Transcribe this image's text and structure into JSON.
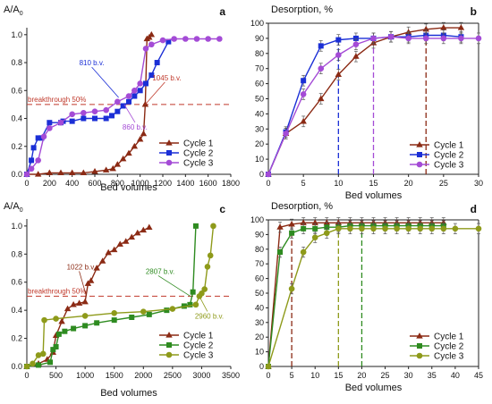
{
  "colors": {
    "cycle1": "#8B2A14",
    "cycle2_top": "#1B2FD6",
    "cycle3_top": "#A44BD6",
    "cycle2_bottom": "#2E8B20",
    "cycle3_bottom": "#8E9A1A",
    "breakthrough": "#C0392B",
    "axis": "#222222"
  },
  "chart_data": [
    {
      "id": "a",
      "panel_label": "a",
      "type": "line",
      "ylabel": "A/A0",
      "xlabel": "Bed volumes",
      "xlim": [
        0,
        1800
      ],
      "ylim": [
        0,
        1.05
      ],
      "xticks": [
        0,
        200,
        400,
        600,
        800,
        1000,
        1200,
        1400,
        1600,
        1800
      ],
      "yticks": [
        0.0,
        0.2,
        0.4,
        0.6,
        0.8,
        1.0
      ],
      "grid": false,
      "legend_position": "bottom-right",
      "hline": {
        "y": 0.5,
        "label": "breakthrough 50%"
      },
      "annotations": [
        {
          "text": "810 b.v.",
          "x": 810,
          "y": 0.55
        },
        {
          "text": "1045 b.v.",
          "x": 1045,
          "y": 0.5
        },
        {
          "text": "860 b.v.",
          "x": 860,
          "y": 0.5
        }
      ],
      "series": [
        {
          "name": "Cycle 1",
          "marker": "triangle",
          "x": [
            0,
            100,
            200,
            300,
            400,
            500,
            600,
            700,
            760,
            800,
            850,
            900,
            950,
            1000,
            1030,
            1045,
            1060,
            1080,
            1100
          ],
          "y": [
            0,
            0,
            0.01,
            0.01,
            0.01,
            0.01,
            0.02,
            0.03,
            0.04,
            0.07,
            0.11,
            0.15,
            0.2,
            0.25,
            0.29,
            0.5,
            0.97,
            0.98,
            1.0
          ]
        },
        {
          "name": "Cycle 2",
          "marker": "square",
          "x": [
            0,
            40,
            60,
            100,
            130,
            200,
            300,
            320,
            400,
            500,
            600,
            700,
            750,
            800,
            850,
            900,
            950,
            1000,
            1050,
            1100,
            1150,
            1250
          ],
          "y": [
            0,
            0.1,
            0.19,
            0.26,
            0.26,
            0.37,
            0.37,
            0.38,
            0.38,
            0.4,
            0.4,
            0.4,
            0.42,
            0.45,
            0.49,
            0.52,
            0.56,
            0.6,
            0.65,
            0.71,
            0.8,
            0.95
          ]
        },
        {
          "name": "Cycle 3",
          "marker": "circle",
          "x": [
            0,
            40,
            100,
            150,
            200,
            300,
            400,
            500,
            600,
            700,
            800,
            900,
            950,
            1000,
            1050,
            1100,
            1200,
            1300,
            1400,
            1500,
            1600,
            1700
          ],
          "y": [
            0,
            0.04,
            0.1,
            0.27,
            0.33,
            0.37,
            0.43,
            0.44,
            0.45,
            0.46,
            0.52,
            0.56,
            0.6,
            0.65,
            0.9,
            0.93,
            0.96,
            0.97,
            0.97,
            0.97,
            0.97,
            0.97
          ]
        }
      ]
    },
    {
      "id": "b",
      "panel_label": "b",
      "type": "line",
      "ylabel": "Desorption, %",
      "xlabel": "Bed volumes",
      "xlim": [
        0,
        30
      ],
      "ylim": [
        0,
        100
      ],
      "xticks": [
        0,
        5,
        10,
        15,
        20,
        25,
        30
      ],
      "yticks": [
        0,
        10,
        20,
        30,
        40,
        50,
        60,
        70,
        80,
        90,
        100
      ],
      "grid": false,
      "legend_position": "bottom-right",
      "vlines": [
        {
          "x": 10,
          "series": "Cycle 2"
        },
        {
          "x": 15,
          "series": "Cycle 3"
        },
        {
          "x": 22.5,
          "series": "Cycle 1"
        }
      ],
      "series": [
        {
          "name": "Cycle 1",
          "marker": "triangle",
          "x": [
            0,
            2.5,
            5,
            7.5,
            10,
            12.5,
            15,
            17.5,
            20,
            22.5,
            25,
            27.5
          ],
          "y": [
            0,
            27,
            35,
            50,
            66,
            78,
            87,
            91,
            94,
            96,
            97,
            97
          ]
        },
        {
          "name": "Cycle 2",
          "marker": "square",
          "x": [
            0,
            2.5,
            5,
            7.5,
            10,
            12.5,
            15,
            17.5,
            20,
            22.5,
            25,
            27.5
          ],
          "y": [
            0,
            28,
            62,
            85,
            89,
            90,
            90,
            91,
            91,
            92,
            92,
            91
          ]
        },
        {
          "name": "Cycle 3",
          "marker": "circle",
          "x": [
            0,
            2.5,
            5,
            7.5,
            10,
            12.5,
            15,
            17.5,
            20,
            22.5,
            25,
            27.5,
            30
          ],
          "y": [
            0,
            27,
            53,
            70,
            79,
            86,
            90,
            91,
            90,
            90,
            90,
            90,
            90
          ]
        }
      ]
    },
    {
      "id": "c",
      "panel_label": "c",
      "type": "line",
      "ylabel": "A/A0",
      "xlabel": "Bed volumes",
      "xlim": [
        0,
        3500
      ],
      "ylim": [
        0,
        1.05
      ],
      "xticks": [
        0,
        500,
        1000,
        1500,
        2000,
        2500,
        3000,
        3500
      ],
      "yticks": [
        0.0,
        0.2,
        0.4,
        0.6,
        0.8,
        1.0
      ],
      "grid": false,
      "legend_position": "bottom-right",
      "hline": {
        "y": 0.5,
        "label": "breakthrough 50%"
      },
      "annotations": [
        {
          "text": "1022 b.v.",
          "x": 1022,
          "y": 0.5
        },
        {
          "text": "2807 b.v.",
          "x": 2807,
          "y": 0.5
        },
        {
          "text": "2960 b.v.",
          "x": 2960,
          "y": 0.5
        }
      ],
      "series": [
        {
          "name": "Cycle 1",
          "marker": "triangle",
          "x": [
            0,
            200,
            350,
            450,
            500,
            600,
            700,
            800,
            900,
            1000,
            1050,
            1100,
            1200,
            1300,
            1400,
            1500,
            1600,
            1700,
            1800,
            1900,
            2000,
            2100
          ],
          "y": [
            0,
            0.02,
            0.05,
            0.1,
            0.22,
            0.32,
            0.41,
            0.44,
            0.45,
            0.46,
            0.59,
            0.61,
            0.7,
            0.75,
            0.81,
            0.83,
            0.87,
            0.89,
            0.92,
            0.95,
            0.97,
            0.99
          ]
        },
        {
          "name": "Cycle 2",
          "marker": "square",
          "x": [
            0,
            200,
            400,
            450,
            500,
            550,
            650,
            800,
            1000,
            1200,
            1500,
            1800,
            2100,
            2400,
            2700,
            2800,
            2850,
            2900
          ],
          "y": [
            0,
            0.01,
            0.03,
            0.12,
            0.14,
            0.23,
            0.25,
            0.27,
            0.29,
            0.31,
            0.33,
            0.35,
            0.37,
            0.4,
            0.43,
            0.44,
            0.53,
            1.0
          ]
        },
        {
          "name": "Cycle 3",
          "marker": "circle",
          "x": [
            0,
            100,
            200,
            280,
            300,
            500,
            1000,
            1500,
            2000,
            2500,
            2900,
            2960,
            3000,
            3050,
            3100,
            3150,
            3200
          ],
          "y": [
            0,
            0.02,
            0.08,
            0.09,
            0.33,
            0.34,
            0.36,
            0.38,
            0.39,
            0.41,
            0.44,
            0.5,
            0.52,
            0.55,
            0.71,
            0.79,
            1.0
          ]
        }
      ]
    },
    {
      "id": "d",
      "panel_label": "d",
      "type": "line",
      "ylabel": "Desorption, %",
      "xlabel": "Bed volumes",
      "xlim": [
        0,
        45
      ],
      "ylim": [
        0,
        100
      ],
      "xticks": [
        0,
        5,
        10,
        15,
        20,
        25,
        30,
        35,
        40,
        45
      ],
      "yticks": [
        0,
        10,
        20,
        30,
        40,
        50,
        60,
        70,
        80,
        90,
        100
      ],
      "grid": false,
      "legend_position": "bottom-right",
      "vlines": [
        {
          "x": 5,
          "series": "Cycle 1"
        },
        {
          "x": 15,
          "series": "Cycle 3"
        },
        {
          "x": 20,
          "series": "Cycle 2"
        }
      ],
      "series": [
        {
          "name": "Cycle 1",
          "marker": "triangle",
          "x": [
            0,
            2.5,
            5,
            7.5,
            10,
            12.5,
            15,
            17.5,
            20,
            22.5,
            25,
            27.5,
            30,
            32.5,
            35,
            37.5
          ],
          "y": [
            0,
            95,
            97,
            98,
            98,
            98,
            98,
            98,
            98,
            98,
            98,
            98,
            98,
            98,
            98,
            98
          ]
        },
        {
          "name": "Cycle 2",
          "marker": "square",
          "x": [
            0,
            2.5,
            5,
            7.5,
            10,
            12.5,
            15,
            17.5,
            20,
            22.5,
            25,
            27.5,
            30,
            32.5,
            35,
            37.5
          ],
          "y": [
            0,
            78,
            91,
            94,
            94,
            95,
            95,
            96,
            96,
            96,
            96,
            96,
            96,
            96,
            96,
            96
          ]
        },
        {
          "name": "Cycle 3",
          "marker": "circle",
          "x": [
            0,
            5,
            7.5,
            10,
            12.5,
            15,
            17.5,
            20,
            22.5,
            25,
            27.5,
            30,
            32.5,
            35,
            37.5,
            40,
            45
          ],
          "y": [
            0,
            53,
            78,
            88,
            91,
            94,
            94,
            94,
            94,
            94,
            94,
            94,
            94,
            94,
            94,
            94,
            94
          ]
        }
      ]
    }
  ]
}
